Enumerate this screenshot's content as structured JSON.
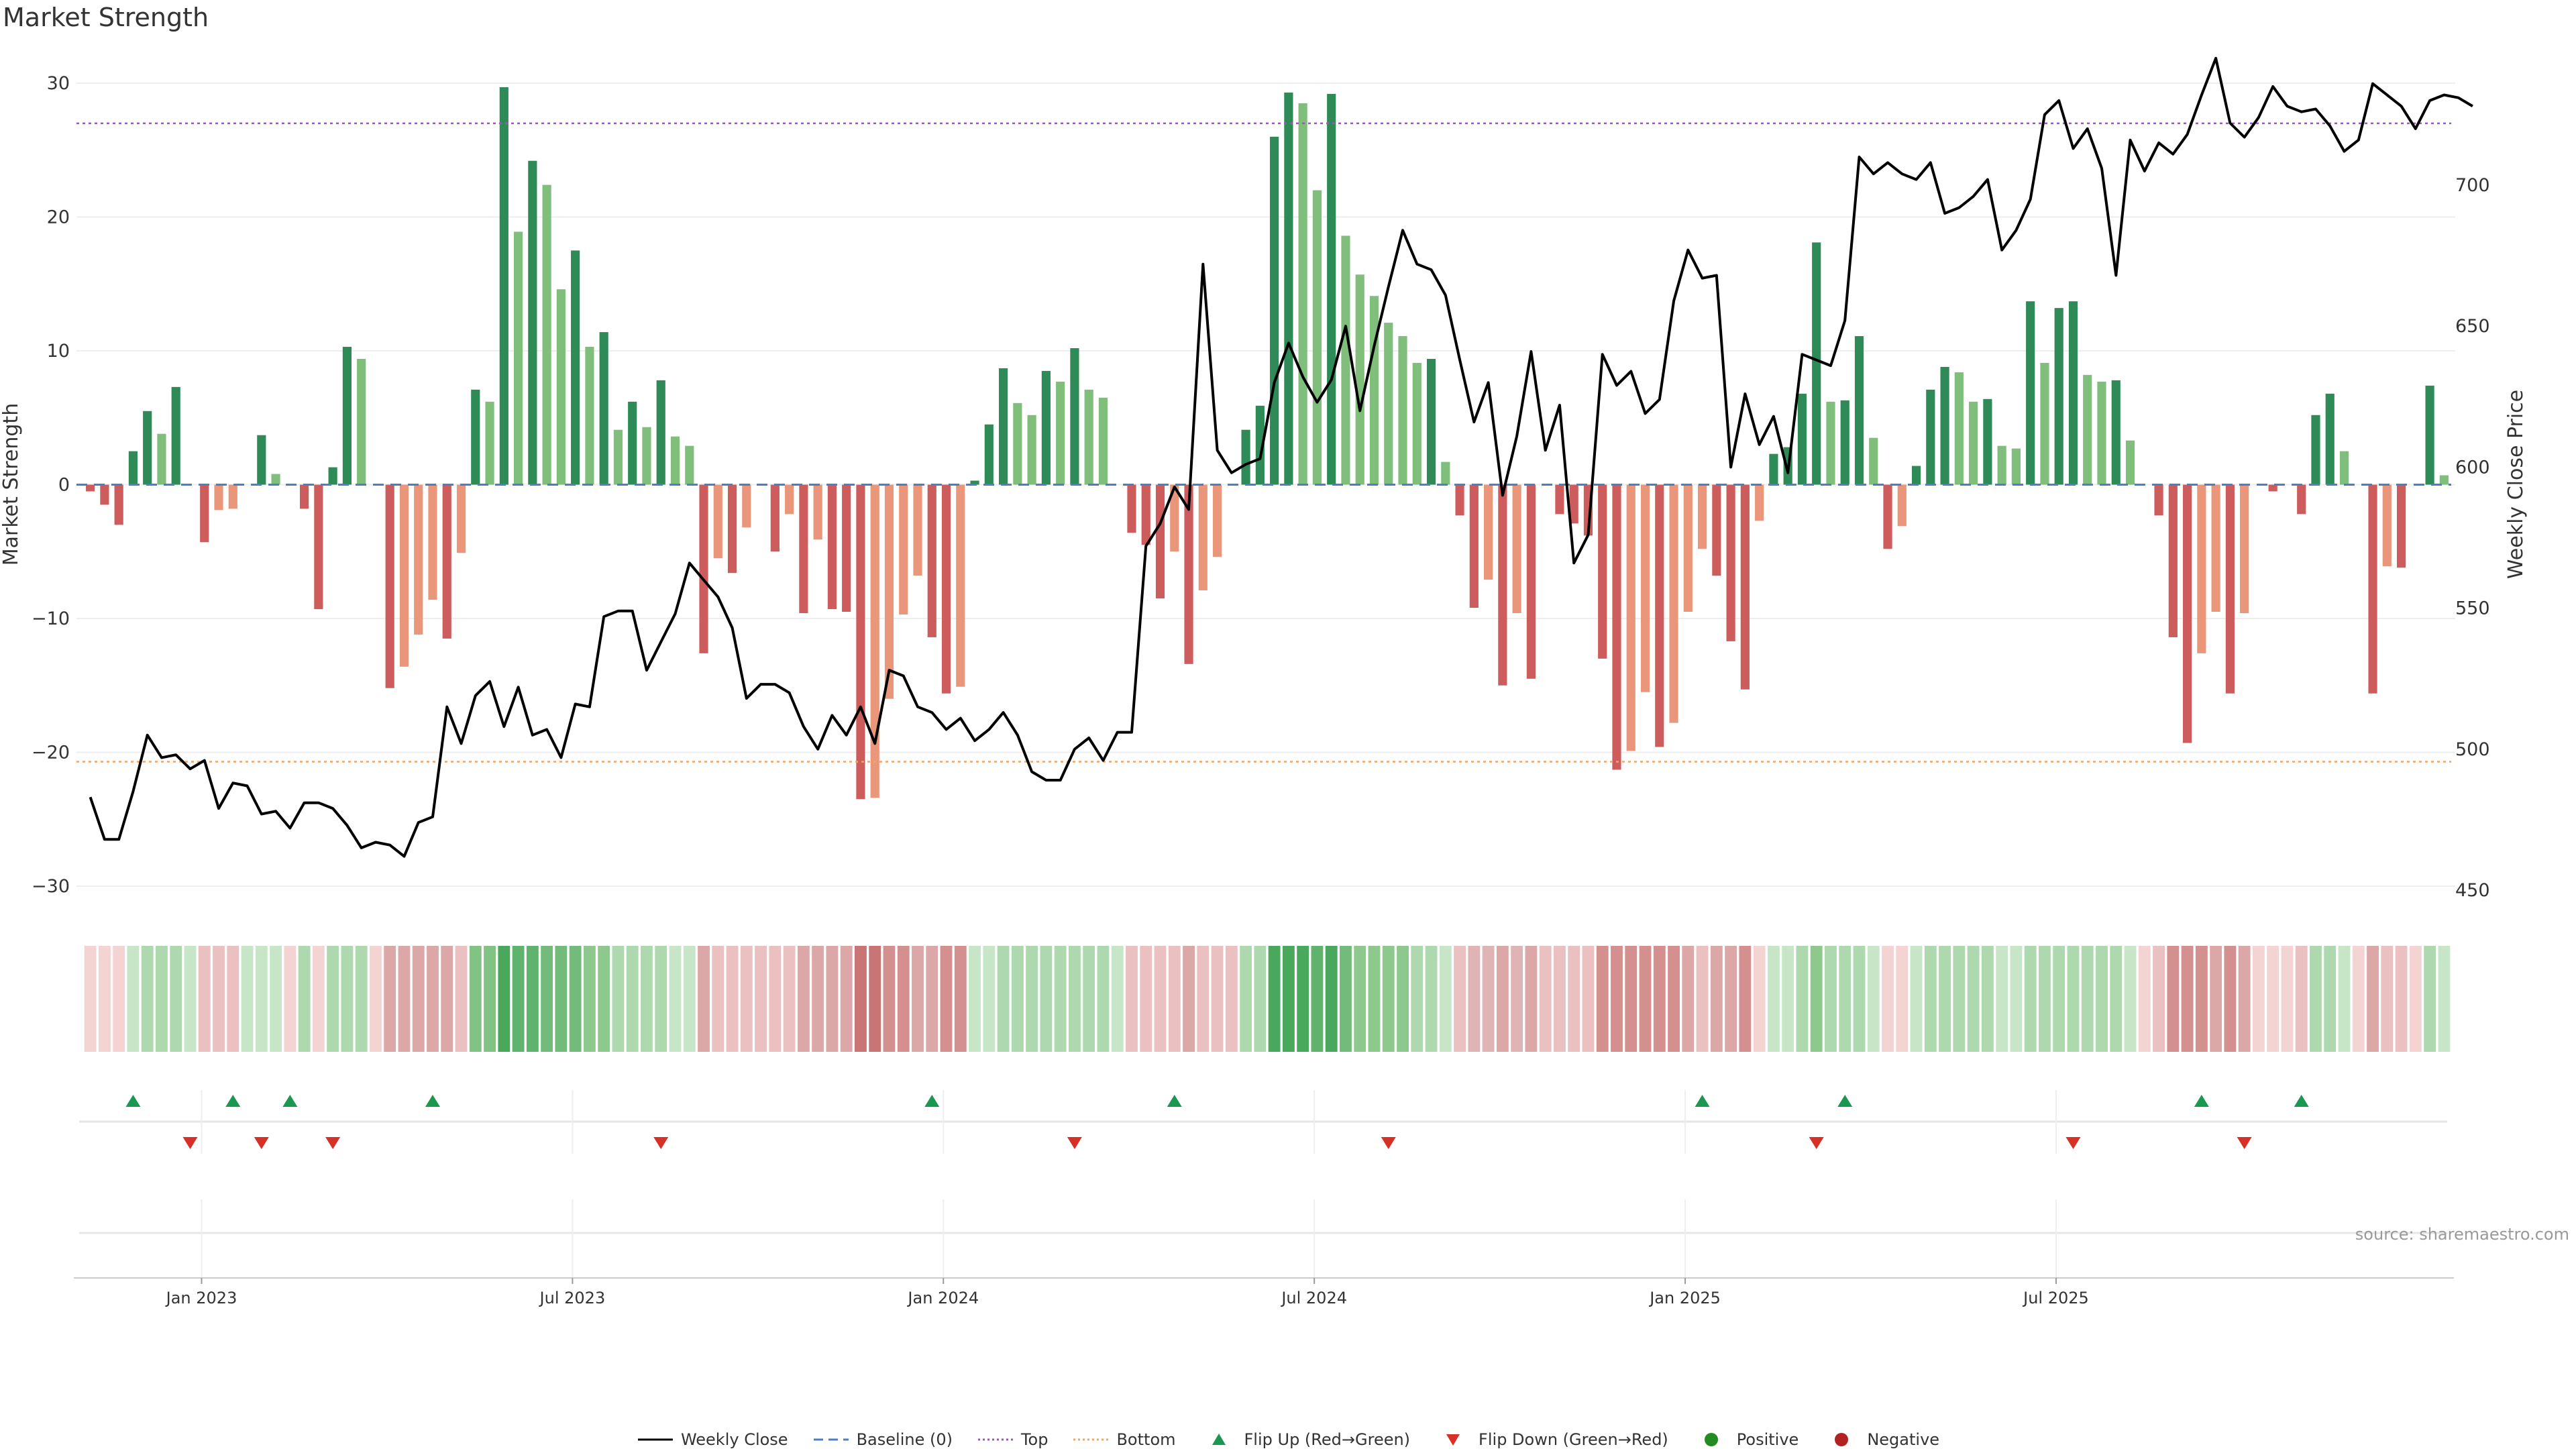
{
  "title": "Market Strength",
  "source": "source: sharemaestro.com",
  "colors": {
    "strong_green": "#2e8b57",
    "light_green": "#7fbf7b",
    "strong_red": "#cd5c5c",
    "light_red": "#e9967a",
    "price_line": "#000000",
    "baseline": "#4a7fc1",
    "top_line": "#9b59b6",
    "bottom_line": "#f4a460",
    "flip_up": "#1a9850",
    "flip_down": "#d73027",
    "positive": "#228b22",
    "negative": "#b22222"
  },
  "legend": [
    {
      "key": "weekly_close",
      "label": "Weekly Close",
      "icon": "solid-line-icon"
    },
    {
      "key": "baseline",
      "label": "Baseline (0)",
      "icon": "dashed-line-icon"
    },
    {
      "key": "top",
      "label": "Top",
      "icon": "dotted-line-icon"
    },
    {
      "key": "bottom",
      "label": "Bottom",
      "icon": "dotted-line-icon"
    },
    {
      "key": "flip_up",
      "label": "Flip Up (Red→Green)",
      "icon": "triangle-up-icon"
    },
    {
      "key": "flip_down",
      "label": "Flip Down (Green→Red)",
      "icon": "triangle-down-icon"
    },
    {
      "key": "positive",
      "label": "Positive",
      "icon": "circle-icon"
    },
    {
      "key": "negative",
      "label": "Negative",
      "icon": "circle-icon"
    }
  ],
  "chart_data": {
    "type": "bar",
    "title": "Market Strength",
    "ylabel": "Market Strength",
    "y2label": "Weekly Close Price",
    "ylim": [
      -32.5,
      32
    ],
    "y2lim": [
      443,
      746
    ],
    "yticks": [
      30,
      20,
      10,
      0,
      -10,
      -20,
      -30
    ],
    "yticklabels": [
      "30",
      "20",
      "10",
      "0",
      "−10",
      "−20",
      "−30"
    ],
    "y2ticks": [
      700,
      650,
      600,
      550,
      500,
      450
    ],
    "xticklabels": [
      "Jan 2023",
      "Jul 2023",
      "Jan 2024",
      "Jul 2024",
      "Jan 2025",
      "Jul 2025"
    ],
    "x_week_of_tick": [
      8.3,
      34.3,
      60.3,
      86.3,
      112.3,
      138.3
    ],
    "top_level": 27,
    "bottom_level": -20.7,
    "baseline_level": 0,
    "strength": [
      -0.5,
      -1.5,
      -3,
      2.5,
      5.5,
      3.8,
      7.3,
      0,
      -4.3,
      -1.9,
      -1.8,
      0,
      3.7,
      0.8,
      0,
      -1.8,
      -9.3,
      1.3,
      10.3,
      9.4,
      0,
      -15.2,
      -13.6,
      -11.2,
      -8.6,
      -11.5,
      -5.1,
      7.1,
      6.2,
      29.7,
      18.9,
      24.2,
      22.4,
      14.6,
      17.5,
      10.3,
      11.4,
      4.1,
      6.2,
      4.3,
      7.8,
      3.6,
      2.9,
      -12.6,
      -5.5,
      -6.6,
      -3.2,
      0,
      -5,
      -2.2,
      -9.6,
      -4.1,
      -9.3,
      -9.5,
      -23.5,
      -23.4,
      -16,
      -9.7,
      -6.8,
      -11.4,
      -15.6,
      -15.1,
      0.3,
      4.5,
      8.7,
      6.1,
      5.2,
      8.5,
      7.7,
      10.2,
      7.1,
      6.5,
      0,
      -3.6,
      -4.5,
      -8.5,
      -5,
      -13.4,
      -7.9,
      -5.4,
      0,
      4.1,
      5.9,
      26,
      29.3,
      28.5,
      22,
      29.2,
      18.6,
      15.7,
      14.1,
      12.1,
      11.1,
      9.1,
      9.4,
      1.7,
      -2.3,
      -9.2,
      -7.1,
      -15,
      -9.6,
      -14.5,
      0,
      -2.2,
      -2.9,
      -3.8,
      -13,
      -21.3,
      -19.9,
      -15.5,
      -19.6,
      -17.8,
      -9.5,
      -4.8,
      -6.8,
      -11.7,
      -15.3,
      -2.7,
      2.3,
      2.8,
      6.8,
      18.1,
      6.2,
      6.3,
      11.1,
      3.5,
      -4.8,
      -3.1,
      1.4,
      7.1,
      8.8,
      8.4,
      6.2,
      6.4,
      2.9,
      2.7,
      13.7,
      9.1,
      13.2,
      13.7,
      8.2,
      7.7,
      7.8,
      3.3,
      0,
      -2.3,
      -11.4,
      -19.3,
      -12.6,
      -9.5,
      -15.6,
      -9.6,
      0,
      -0.5,
      0,
      -2.2,
      5.2,
      6.8,
      2.5,
      0,
      -15.6,
      -6.1,
      -6.2,
      0,
      7.4,
      0.7
    ],
    "weekly_close": [
      483,
      468,
      468,
      485,
      505,
      497,
      498,
      493,
      496,
      479,
      488,
      487,
      477,
      478,
      472,
      481,
      481,
      479,
      473,
      465,
      467,
      466,
      462,
      474,
      476,
      515,
      502,
      519,
      524,
      508,
      522,
      505,
      507,
      497,
      516,
      515,
      547,
      549,
      549,
      528,
      538,
      548,
      566,
      560,
      554,
      543,
      518,
      523,
      523,
      520,
      508,
      500,
      512,
      505,
      515,
      502,
      528,
      526,
      515,
      513,
      507,
      511,
      503,
      507,
      513,
      505,
      492,
      489,
      489,
      500,
      504,
      496,
      506,
      506,
      572,
      580,
      593,
      585,
      672,
      606,
      598,
      601,
      603,
      630,
      644,
      632,
      623,
      631,
      650,
      620,
      643,
      664,
      684,
      672,
      670,
      661,
      638,
      616,
      630,
      590,
      611,
      641,
      606,
      622,
      566,
      576,
      640,
      629,
      634,
      619,
      624,
      659,
      677,
      667,
      668,
      600,
      626,
      608,
      618,
      598,
      640,
      638,
      636,
      652,
      710,
      704,
      708,
      704,
      702,
      708,
      690,
      692,
      696,
      702,
      677,
      684,
      695,
      725,
      730,
      713,
      720,
      706,
      668,
      716,
      705,
      715,
      711,
      718,
      732,
      745,
      722,
      717,
      724,
      735,
      728,
      726,
      727,
      721,
      712,
      716,
      736,
      732,
      728,
      720,
      730,
      732,
      731,
      728
    ],
    "heat_fills": [
      "#f4d3d3",
      "#f4d3d3",
      "#f4d3d3",
      "#c7e6c7",
      "#aed8ae",
      "#aed8ae",
      "#aed8ae",
      "#c7e6c7",
      "#eac0c0",
      "#eac0c0",
      "#eac0c0",
      "#c7e6c7",
      "#c7e6c7",
      "#c7e6c7",
      "#f4d3d3",
      "#aed8ae",
      "#f4d3d3",
      "#aed8ae",
      "#aed8ae",
      "#aed8ae",
      "#f4d3d3",
      "#dba7a7",
      "#dba7a7",
      "#dba7a7",
      "#dba7a7",
      "#dba7a7",
      "#eac0c0",
      "#82c282",
      "#82c282",
      "#4aa85c",
      "#5fb36d",
      "#5fb36d",
      "#72bb7b",
      "#72bb7b",
      "#72bb7b",
      "#8dc98d",
      "#8dc98d",
      "#aed8ae",
      "#aed8ae",
      "#aed8ae",
      "#aed8ae",
      "#c7e6c7",
      "#c7e6c7",
      "#dba7a7",
      "#eac0c0",
      "#eac0c0",
      "#eac0c0",
      "#eac0c0",
      "#eac0c0",
      "#eac0c0",
      "#dba7a7",
      "#dba7a7",
      "#dba7a7",
      "#dba7a7",
      "#c97575",
      "#c97575",
      "#d48f8f",
      "#d48f8f",
      "#dba7a7",
      "#dba7a7",
      "#d48f8f",
      "#d48f8f",
      "#c7e6c7",
      "#c7e6c7",
      "#aed8ae",
      "#aed8ae",
      "#aed8ae",
      "#aed8ae",
      "#aed8ae",
      "#aed8ae",
      "#aed8ae",
      "#aed8ae",
      "#c7e6c7",
      "#eac0c0",
      "#eac0c0",
      "#eac0c0",
      "#eac0c0",
      "#dba7a7",
      "#eac0c0",
      "#eac0c0",
      "#eac0c0",
      "#aed8ae",
      "#aed8ae",
      "#4aa85c",
      "#4aa85c",
      "#4aa85c",
      "#5fb36d",
      "#4aa85c",
      "#72bb7b",
      "#8dc98d",
      "#8dc98d",
      "#8dc98d",
      "#8dc98d",
      "#aed8ae",
      "#aed8ae",
      "#c7e6c7",
      "#eac0c0",
      "#e0b4b4",
      "#e0b4b4",
      "#dba7a7",
      "#e0b4b4",
      "#dba7a7",
      "#eac0c0",
      "#eac0c0",
      "#eac0c0",
      "#eac0c0",
      "#d48f8f",
      "#d48f8f",
      "#d48f8f",
      "#d48f8f",
      "#d48f8f",
      "#d48f8f",
      "#dba7a7",
      "#eac0c0",
      "#dba7a7",
      "#dba7a7",
      "#d48f8f",
      "#f4d3d3",
      "#c7e6c7",
      "#c7e6c7",
      "#aed8ae",
      "#8dc98d",
      "#aed8ae",
      "#aed8ae",
      "#aed8ae",
      "#c7e6c7",
      "#f4d3d3",
      "#f4d3d3",
      "#c7e6c7",
      "#aed8ae",
      "#aed8ae",
      "#aed8ae",
      "#aed8ae",
      "#aed8ae",
      "#c7e6c7",
      "#c7e6c7",
      "#aed8ae",
      "#aed8ae",
      "#aed8ae",
      "#aed8ae",
      "#aed8ae",
      "#aed8ae",
      "#aed8ae",
      "#c7e6c7",
      "#f4d3d3",
      "#eac0c0",
      "#d48f8f",
      "#d48f8f",
      "#d48f8f",
      "#dba7a7",
      "#d48f8f",
      "#dba7a7",
      "#f4d3d3",
      "#f4d3d3",
      "#f4d3d3",
      "#eac0c0",
      "#aed8ae",
      "#aed8ae",
      "#c7e6c7",
      "#f4d3d3",
      "#dba7a7",
      "#eac0c0",
      "#eac0c0",
      "#f4d3d3",
      "#aed8ae",
      "#c7e6c7"
    ],
    "flip_up_weeks": [
      3,
      10,
      14,
      24,
      59,
      76,
      113,
      123,
      148,
      155
    ],
    "flip_down_weeks": [
      7,
      12,
      17,
      40,
      69,
      91,
      121,
      139,
      151
    ]
  }
}
